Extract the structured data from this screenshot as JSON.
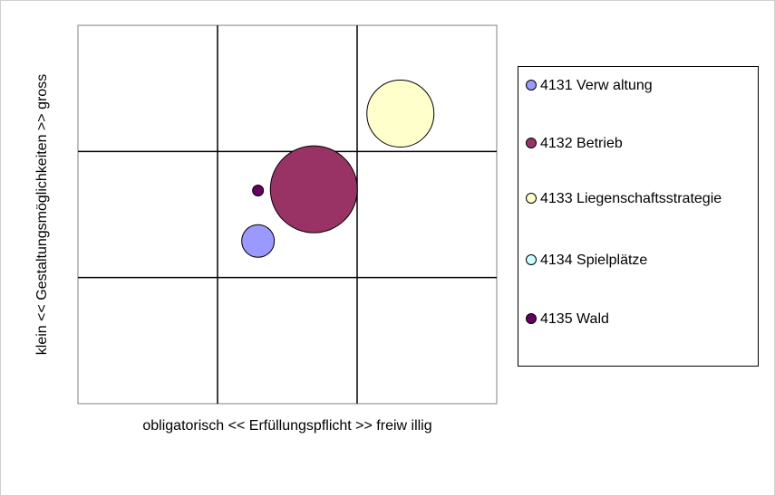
{
  "chart_data": {
    "type": "bubble",
    "x_label": "obligatorisch << Erfüllungspflicht >> freiw illig",
    "y_label": "klein << Gestaltungsmöglichkeiten >> gross",
    "xlim": [
      0,
      3
    ],
    "ylim": [
      0,
      3
    ],
    "xticks": [
      0,
      1,
      2,
      3
    ],
    "yticks": [
      0,
      1,
      2,
      3
    ],
    "grid": true,
    "legend": "right",
    "series": [
      {
        "name": "4131 Verw altung",
        "color": "#9999ff",
        "x": [
          1.29
        ],
        "values": [
          1.29
        ],
        "sizes": [
          9
        ]
      },
      {
        "name": "4132 Betrieb",
        "color": "#993366",
        "x": [
          1.69
        ],
        "values": [
          1.7
        ],
        "sizes": [
          64
        ]
      },
      {
        "name": "4133 Liegenschaftsstrategie",
        "color": "#ffffcc",
        "x": [
          2.31
        ],
        "values": [
          2.3
        ],
        "sizes": [
          38
        ]
      },
      {
        "name": "4134 Spielplätze",
        "color": "#ccffff",
        "x": [
          null
        ],
        "values": [
          null
        ],
        "sizes": [
          null
        ]
      },
      {
        "name": "4135 Wald",
        "color": "#660066",
        "x": [
          1.29
        ],
        "values": [
          1.69
        ],
        "sizes": [
          1
        ]
      }
    ]
  }
}
